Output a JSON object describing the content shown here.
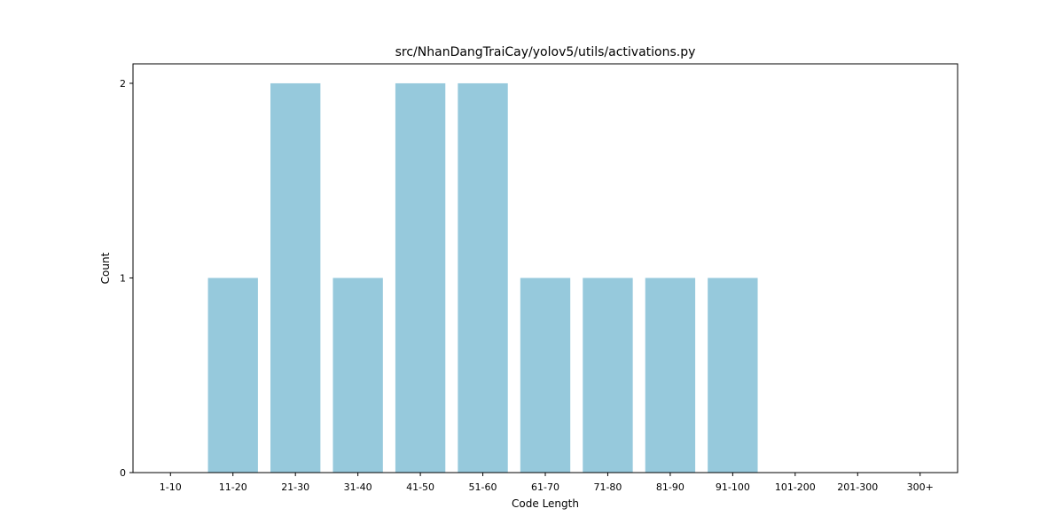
{
  "chart_data": {
    "type": "bar",
    "title": "src/NhanDangTraiCay/yolov5/utils/activations.py",
    "xlabel": "Code Length",
    "ylabel": "Count",
    "categories": [
      "1-10",
      "11-20",
      "21-30",
      "31-40",
      "41-50",
      "51-60",
      "61-70",
      "71-80",
      "81-90",
      "91-100",
      "101-200",
      "201-300",
      "300+"
    ],
    "values": [
      0,
      1,
      2,
      1,
      2,
      2,
      1,
      1,
      1,
      1,
      0,
      0,
      0
    ],
    "ylim": [
      0,
      2.1
    ],
    "yticks": [
      0,
      1,
      2
    ],
    "grid": false,
    "bar_color": "#96c9dc"
  }
}
